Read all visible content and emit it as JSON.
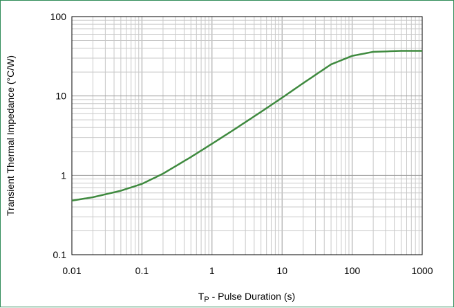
{
  "chart_data": {
    "type": "line",
    "title": "",
    "xlabel_prefix": "T",
    "xlabel_sub": "P",
    "xlabel_rest": " - Pulse Duration (s)",
    "ylabel": "Transient Thermal Impedance (°C/W)",
    "x_scale": "log",
    "y_scale": "log",
    "xlim": [
      0.01,
      1000
    ],
    "ylim": [
      0.1,
      100
    ],
    "grid": true,
    "x_tick_labels": [
      "0.01",
      "0.1",
      "1",
      "10",
      "100",
      "1000"
    ],
    "y_tick_labels": [
      "0.1",
      "1",
      "10",
      "100"
    ],
    "series": [
      {
        "color": "#3f8a3f",
        "x": [
          0.01,
          0.02,
          0.05,
          0.1,
          0.2,
          0.5,
          1,
          2,
          5,
          10,
          20,
          50,
          100,
          200,
          500,
          1000
        ],
        "y": [
          0.48,
          0.53,
          0.64,
          0.78,
          1.05,
          1.7,
          2.5,
          3.7,
          6.3,
          9.5,
          14.5,
          25,
          32,
          36,
          37,
          37
        ]
      }
    ]
  }
}
